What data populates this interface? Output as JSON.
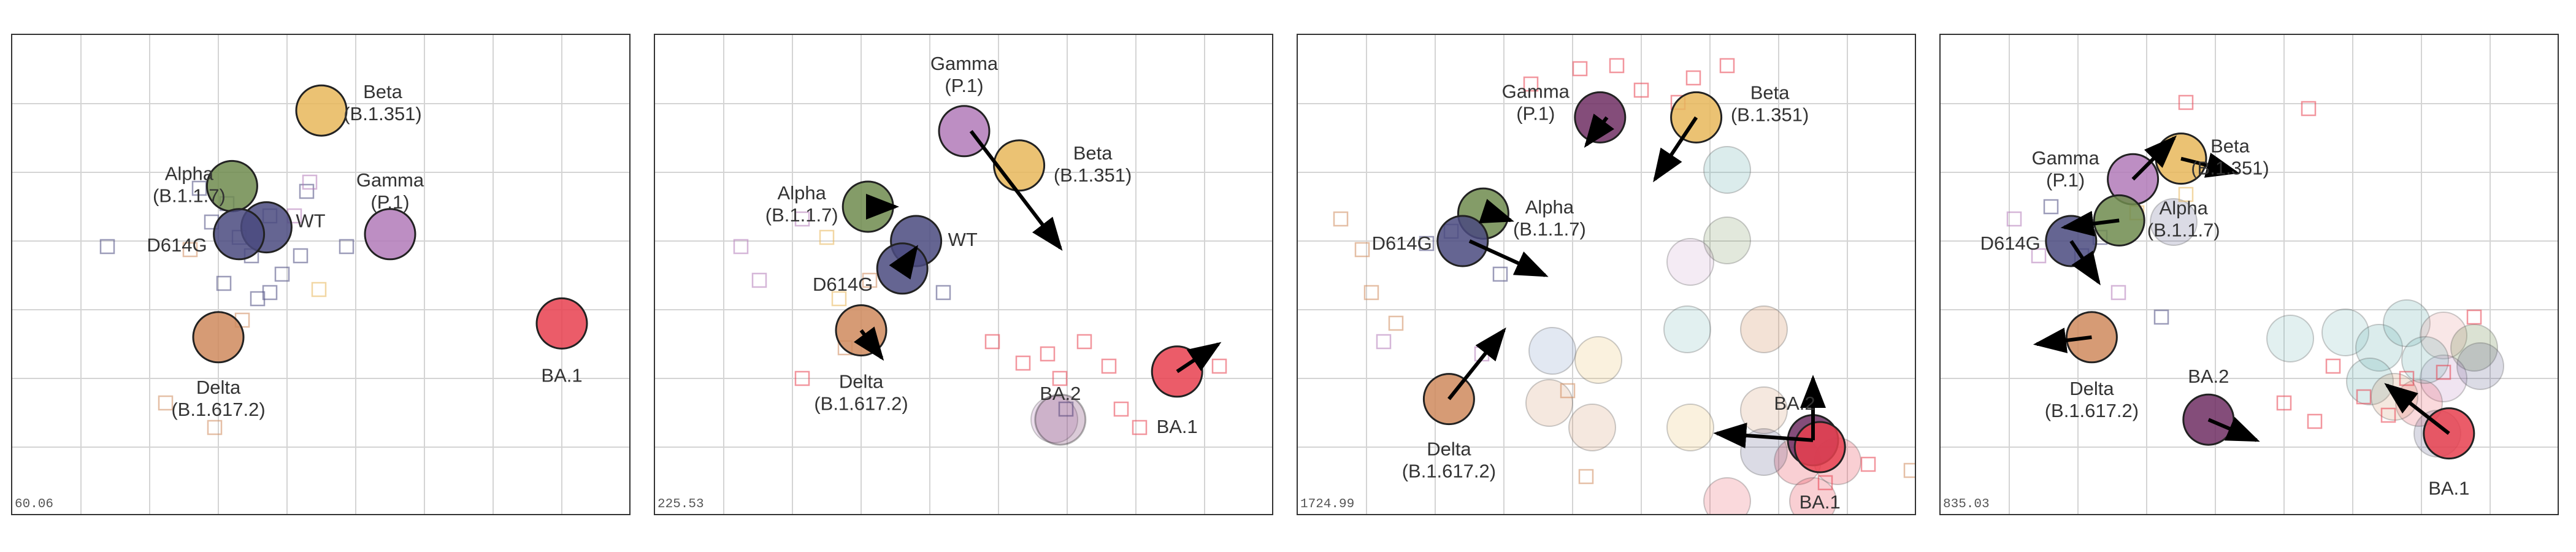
{
  "colors": {
    "wt": "#4a4a7f",
    "d614g": "#4a4a7f",
    "alpha": "#6f8b4e",
    "beta": "#e8b75a",
    "gamma": "#b27ab8",
    "delta": "#cf8a5d",
    "ba1": "#e8404f",
    "ba2": "#6e2e63",
    "arrow": "#000000",
    "grid": "#d4d4d4"
  },
  "panels": [
    {
      "id": "p1",
      "corner": "60.06",
      "viruses": [
        {
          "name": "Beta",
          "lines": [
            "Beta",
            "(B.1.351)"
          ],
          "color": "beta",
          "x": 4.5,
          "y": 1.1
        },
        {
          "name": "Alpha",
          "lines": [
            "Alpha",
            "(B.1.1.7)"
          ],
          "color": "alpha",
          "x": 3.2,
          "y": 2.2
        },
        {
          "name": "Gamma",
          "lines": [
            "Gamma",
            "(P.1)"
          ],
          "color": "gamma",
          "x": 5.5,
          "y": 2.9
        },
        {
          "name": "WT",
          "lines": [
            "WT"
          ],
          "color": "wt",
          "x": 3.7,
          "y": 2.8
        },
        {
          "name": "D614G",
          "lines": [
            "D614G"
          ],
          "color": "d614g",
          "x": 3.3,
          "y": 2.9
        },
        {
          "name": "Delta",
          "lines": [
            "Delta",
            "(B.1.617.2)"
          ],
          "color": "delta",
          "x": 3.0,
          "y": 4.4
        },
        {
          "name": "BA.1",
          "lines": [
            "BA.1"
          ],
          "color": "ba1",
          "x": 8.0,
          "y": 4.2
        }
      ],
      "arrows": []
    },
    {
      "id": "p2",
      "corner": "225.53",
      "viruses": [
        {
          "name": "Gamma",
          "lines": [
            "Gamma",
            "(P.1)"
          ],
          "color": "gamma",
          "x": 4.5,
          "y": 1.4
        },
        {
          "name": "Beta",
          "lines": [
            "Beta",
            "(B.1.351)"
          ],
          "color": "beta",
          "x": 5.3,
          "y": 1.9
        },
        {
          "name": "Alpha",
          "lines": [
            "Alpha",
            "(B.1.1.7)"
          ],
          "color": "alpha",
          "x": 3.1,
          "y": 2.5
        },
        {
          "name": "WT",
          "lines": [
            "WT"
          ],
          "color": "wt",
          "x": 3.8,
          "y": 3.0
        },
        {
          "name": "D614G",
          "lines": [
            "D614G"
          ],
          "color": "d614g",
          "x": 3.6,
          "y": 3.4
        },
        {
          "name": "Delta",
          "lines": [
            "Delta",
            "(B.1.617.2)"
          ],
          "color": "delta",
          "x": 3.0,
          "y": 4.3
        },
        {
          "name": "BA.1",
          "lines": [
            "BA.1"
          ],
          "color": "ba1",
          "x": 7.6,
          "y": 4.9
        },
        {
          "name": "BA.2",
          "lines": [
            "BA.2"
          ],
          "color": "ba2",
          "x": 5.9,
          "y": 5.6,
          "faded": true
        }
      ],
      "arrows": [
        {
          "from": [
            4.6,
            1.4
          ],
          "to": [
            5.9,
            3.1
          ]
        },
        {
          "from": [
            3.2,
            2.5
          ],
          "to": [
            3.5,
            2.5
          ]
        },
        {
          "from": [
            3.6,
            3.4
          ],
          "to": [
            3.8,
            3.1
          ]
        },
        {
          "from": [
            3.0,
            4.3
          ],
          "to": [
            3.3,
            4.7
          ]
        },
        {
          "from": [
            7.6,
            4.9
          ],
          "to": [
            8.2,
            4.5
          ]
        }
      ]
    },
    {
      "id": "p3",
      "corner": "1724.99",
      "viruses": [
        {
          "name": "Gamma",
          "lines": [
            "Gamma",
            "(P.1)"
          ],
          "color": "ba2",
          "x": 4.4,
          "y": 1.2
        },
        {
          "name": "Beta",
          "lines": [
            "Beta",
            "(B.1.351)"
          ],
          "color": "beta",
          "x": 5.8,
          "y": 1.2
        },
        {
          "name": "Alpha",
          "lines": [
            "Alpha",
            "(B.1.1.7)"
          ],
          "color": "alpha",
          "x": 2.7,
          "y": 2.6
        },
        {
          "name": "D614G",
          "lines": [
            "D614G"
          ],
          "color": "d614g",
          "x": 2.4,
          "y": 3.0
        },
        {
          "name": "Delta",
          "lines": [
            "Delta",
            "(B.1.617.2)"
          ],
          "color": "delta",
          "x": 2.2,
          "y": 5.3
        },
        {
          "name": "BA.2",
          "lines": [
            "BA.2"
          ],
          "color": "ba2",
          "x": 7.5,
          "y": 5.9
        },
        {
          "name": "BA.1",
          "lines": [
            "BA.1"
          ],
          "color": "ba1",
          "x": 7.6,
          "y": 6.0
        }
      ],
      "arrows": [
        {
          "from": [
            4.5,
            1.2
          ],
          "to": [
            4.2,
            1.6
          ]
        },
        {
          "from": [
            5.8,
            1.2
          ],
          "to": [
            5.2,
            2.1
          ]
        },
        {
          "from": [
            2.8,
            2.6
          ],
          "to": [
            3.1,
            2.7
          ]
        },
        {
          "from": [
            2.5,
            3.0
          ],
          "to": [
            3.6,
            3.5
          ]
        },
        {
          "from": [
            2.2,
            5.3
          ],
          "to": [
            3.0,
            4.3
          ]
        },
        {
          "from": [
            7.5,
            5.9
          ],
          "to": [
            6.1,
            5.8
          ]
        },
        {
          "from": [
            7.5,
            5.9
          ],
          "to": [
            7.5,
            5.0
          ]
        }
      ]
    },
    {
      "id": "p4",
      "corner": "835.03",
      "viruses": [
        {
          "name": "Beta",
          "lines": [
            "Beta",
            "(B.1.351)"
          ],
          "color": "beta",
          "x": 3.5,
          "y": 1.8
        },
        {
          "name": "Gamma",
          "lines": [
            "Gamma",
            "(P.1)"
          ],
          "color": "gamma",
          "x": 2.8,
          "y": 2.1
        },
        {
          "name": "Alpha",
          "lines": [
            "Alpha",
            "(B.1.1.7)"
          ],
          "color": "alpha",
          "x": 2.6,
          "y": 2.7
        },
        {
          "name": "D614G",
          "lines": [
            "D614G"
          ],
          "color": "d614g",
          "x": 1.9,
          "y": 3.0
        },
        {
          "name": "Delta",
          "lines": [
            "Delta",
            "(B.1.617.2)"
          ],
          "color": "delta",
          "x": 2.2,
          "y": 4.4
        },
        {
          "name": "BA.2",
          "lines": [
            "BA.2"
          ],
          "color": "ba2",
          "x": 3.9,
          "y": 5.6
        },
        {
          "name": "BA.1",
          "lines": [
            "BA.1"
          ],
          "color": "ba1",
          "x": 7.4,
          "y": 5.8
        }
      ],
      "arrows": [
        {
          "from": [
            2.8,
            2.1
          ],
          "to": [
            3.4,
            1.5
          ]
        },
        {
          "from": [
            3.5,
            1.8
          ],
          "to": [
            4.3,
            2.0
          ]
        },
        {
          "from": [
            2.6,
            2.7
          ],
          "to": [
            1.8,
            2.8
          ]
        },
        {
          "from": [
            1.9,
            3.0
          ],
          "to": [
            2.3,
            3.6
          ]
        },
        {
          "from": [
            2.2,
            4.4
          ],
          "to": [
            1.4,
            4.5
          ]
        },
        {
          "from": [
            3.9,
            5.6
          ],
          "to": [
            4.6,
            5.9
          ]
        },
        {
          "from": [
            7.4,
            5.8
          ],
          "to": [
            6.5,
            5.1
          ]
        }
      ]
    }
  ]
}
